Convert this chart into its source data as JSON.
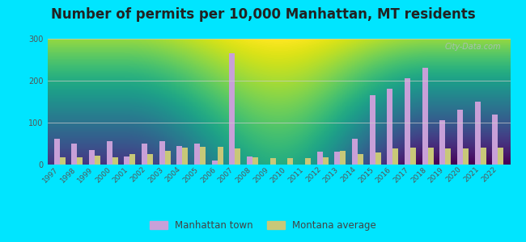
{
  "title": "Number of permits per 10,000 Manhattan, MT residents",
  "years": [
    1997,
    1998,
    1999,
    2000,
    2001,
    2002,
    2003,
    2004,
    2005,
    2006,
    2007,
    2008,
    2009,
    2010,
    2011,
    2012,
    2013,
    2014,
    2015,
    2016,
    2017,
    2018,
    2019,
    2020,
    2021,
    2022
  ],
  "manhattan": [
    62,
    50,
    35,
    55,
    20,
    50,
    55,
    45,
    50,
    10,
    265,
    20,
    0,
    0,
    0,
    30,
    30,
    62,
    165,
    180,
    205,
    230,
    105,
    130,
    150,
    120
  ],
  "montana": [
    18,
    18,
    22,
    18,
    25,
    25,
    32,
    40,
    42,
    42,
    38,
    18,
    15,
    15,
    15,
    18,
    32,
    25,
    28,
    38,
    40,
    40,
    38,
    38,
    40,
    40
  ],
  "manhattan_color": "#c8a0d8",
  "montana_color": "#c8c878",
  "outer_background": "#00e5ff",
  "ylim": [
    0,
    300
  ],
  "yticks": [
    0,
    100,
    200,
    300
  ],
  "grid_color": "#cccccc",
  "title_fontsize": 12,
  "legend_manhattan": "Manhattan town",
  "legend_montana": "Montana average",
  "bg_top_color": "#f5fff5",
  "bg_bottom_color": "#c8e8c0"
}
